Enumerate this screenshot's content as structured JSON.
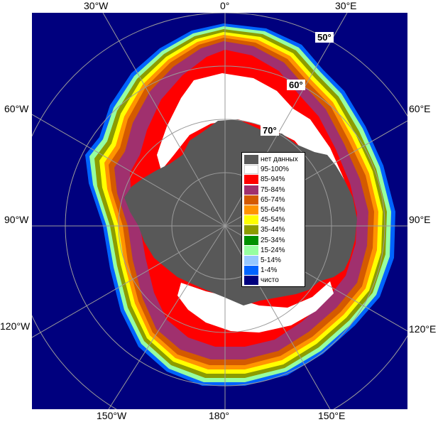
{
  "map": {
    "colors": {
      "open_water": "#00007e",
      "land": "#585858",
      "grid": "#9a9a9a"
    }
  },
  "longitude_labels": {
    "lon_30w": "30°W",
    "lon_0": "0°",
    "lon_30e": "30°E",
    "lon_60w": "60°W",
    "lon_60e": "60°E",
    "lon_90w": "90°W",
    "lon_90e": "90°E",
    "lon_120w": "120°W",
    "lon_120e": "120°E",
    "lon_150w": "150°W",
    "lon_180": "180°",
    "lon_150e": "150°E"
  },
  "latitude_labels": {
    "lat_50": "50°",
    "lat_60": "60°",
    "lat_70": "70°"
  },
  "legend": {
    "items": [
      {
        "label": "нет данных",
        "color": "#585858"
      },
      {
        "label": "95-100%",
        "color": "#ffffff"
      },
      {
        "label": "85-94%",
        "color": "#ff0000"
      },
      {
        "label": "75-84%",
        "color": "#a0306e"
      },
      {
        "label": "65-74%",
        "color": "#d45a00"
      },
      {
        "label": "55-64%",
        "color": "#ff9400"
      },
      {
        "label": "45-54%",
        "color": "#ffff00"
      },
      {
        "label": "35-44%",
        "color": "#8c9c00"
      },
      {
        "label": "25-34%",
        "color": "#009000"
      },
      {
        "label": "15-24%",
        "color": "#96ffa0"
      },
      {
        "label": "5-14%",
        "color": "#96c8ff"
      },
      {
        "label": "1-4%",
        "color": "#0064ff"
      },
      {
        "label": "чисто",
        "color": "#00007e"
      }
    ]
  }
}
